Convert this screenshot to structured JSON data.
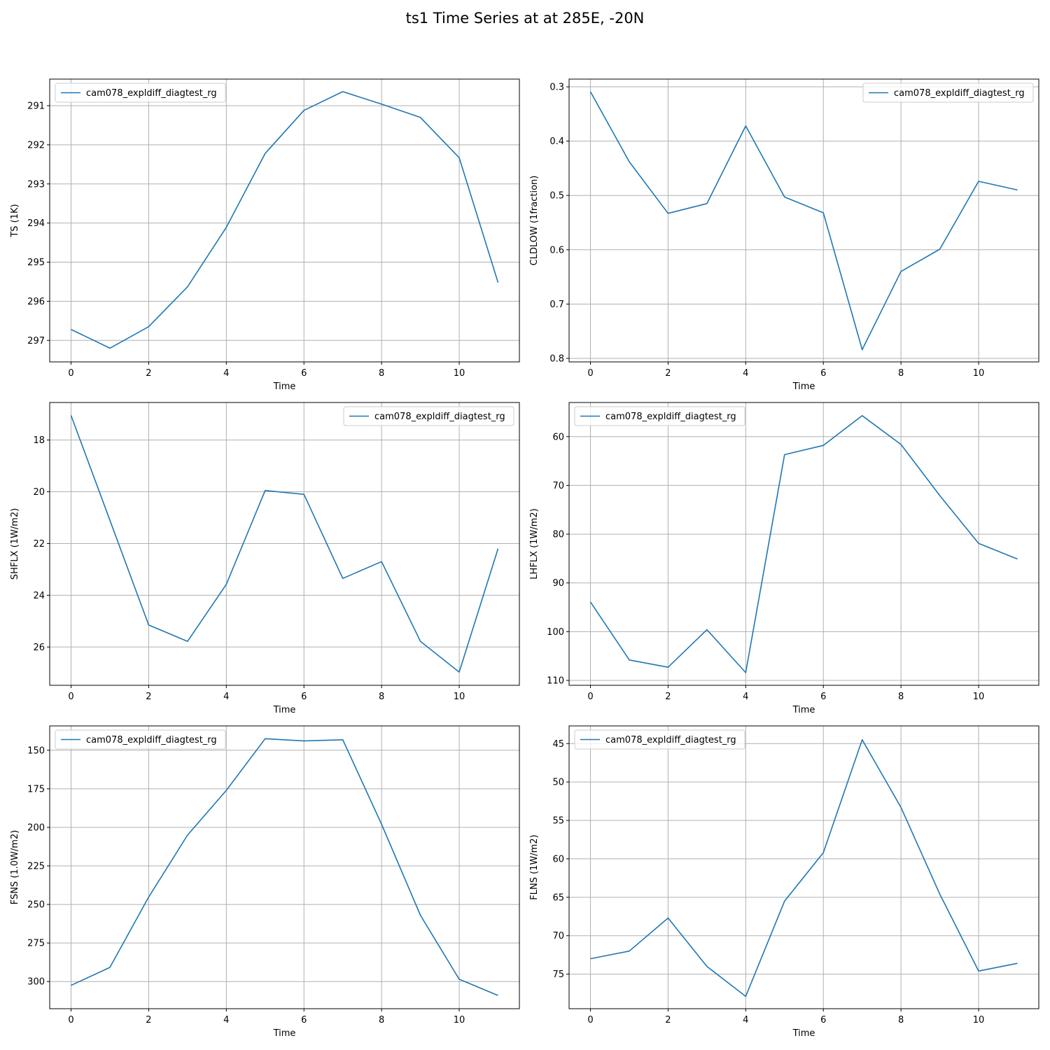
{
  "figure": {
    "title": "ts1 Time Series at at 285E, -20N",
    "line_color": "#1f77b4",
    "grid_color": "#b0b0b0"
  },
  "chart_data": [
    {
      "type": "line",
      "title": "",
      "xlabel": "Time",
      "ylabel": "TS (1K)",
      "inverted_y": true,
      "xlim": [
        -0.55,
        11.55
      ],
      "ylim": [
        290.32,
        297.55
      ],
      "xticks": [
        0,
        2,
        4,
        6,
        8,
        10
      ],
      "yticks": [
        291,
        292,
        293,
        294,
        295,
        296,
        297
      ],
      "grid": true,
      "legend_loc": "upper left",
      "series": [
        {
          "name": "cam078_expldiff_diagtest_rg",
          "x": [
            0,
            1,
            2,
            3,
            4,
            5,
            6,
            7,
            8,
            9,
            10,
            11
          ],
          "values": [
            296.72,
            297.2,
            296.65,
            295.63,
            294.11,
            292.22,
            291.12,
            290.64,
            290.96,
            291.3,
            292.33,
            295.52
          ]
        }
      ]
    },
    {
      "type": "line",
      "title": "",
      "xlabel": "Time",
      "ylabel": "CLDLOW (1fraction)",
      "inverted_y": true,
      "xlim": [
        -0.55,
        11.55
      ],
      "ylim": [
        0.2858,
        0.8065
      ],
      "xticks": [
        0,
        2,
        4,
        6,
        8,
        10
      ],
      "yticks": [
        0.3,
        0.4,
        0.5,
        0.6,
        0.7,
        0.8
      ],
      "grid": true,
      "legend_loc": "upper right",
      "series": [
        {
          "name": "cam078_expldiff_diagtest_rg",
          "x": [
            0,
            1,
            2,
            3,
            4,
            5,
            6,
            7,
            8,
            9,
            10,
            11
          ],
          "values": [
            0.309,
            0.438,
            0.533,
            0.515,
            0.372,
            0.503,
            0.532,
            0.784,
            0.64,
            0.599,
            0.474,
            0.49
          ]
        }
      ]
    },
    {
      "type": "line",
      "title": "",
      "xlabel": "Time",
      "ylabel": "SHFLX (1W/m2)",
      "inverted_y": true,
      "xlim": [
        -0.55,
        11.55
      ],
      "ylim": [
        16.55,
        27.48
      ],
      "xticks": [
        0,
        2,
        4,
        6,
        8,
        10
      ],
      "yticks": [
        18,
        20,
        22,
        24,
        26
      ],
      "grid": true,
      "legend_loc": "upper right",
      "series": [
        {
          "name": "cam078_expldiff_diagtest_rg",
          "x": [
            0,
            1,
            2,
            3,
            4,
            5,
            6,
            7,
            8,
            9,
            10,
            11
          ],
          "values": [
            17.05,
            21.1,
            25.15,
            25.78,
            23.58,
            19.95,
            20.1,
            23.35,
            22.7,
            25.78,
            26.97,
            22.2
          ]
        }
      ]
    },
    {
      "type": "line",
      "title": "",
      "xlabel": "Time",
      "ylabel": "LHFLX (1W/m2)",
      "inverted_y": true,
      "xlim": [
        -0.55,
        11.55
      ],
      "ylim": [
        53.0,
        111.0
      ],
      "xticks": [
        0,
        2,
        4,
        6,
        8,
        10
      ],
      "yticks": [
        60,
        70,
        80,
        90,
        100,
        110
      ],
      "grid": true,
      "legend_loc": "upper left",
      "series": [
        {
          "name": "cam078_expldiff_diagtest_rg",
          "x": [
            0,
            1,
            2,
            3,
            4,
            5,
            6,
            7,
            8,
            9,
            10,
            11
          ],
          "values": [
            93.9,
            105.8,
            107.3,
            99.6,
            108.4,
            63.7,
            61.8,
            55.7,
            61.6,
            72.1,
            81.9,
            85.1
          ]
        }
      ]
    },
    {
      "type": "line",
      "title": "",
      "xlabel": "Time",
      "ylabel": "FSNS (1.0W/m2)",
      "inverted_y": true,
      "xlim": [
        -0.55,
        11.55
      ],
      "ylim": [
        134.2,
        317.6
      ],
      "xticks": [
        0,
        2,
        4,
        6,
        8,
        10
      ],
      "yticks": [
        150,
        175,
        200,
        225,
        250,
        275,
        300
      ],
      "grid": true,
      "legend_loc": "upper left",
      "series": [
        {
          "name": "cam078_expldiff_diagtest_rg",
          "x": [
            0,
            1,
            2,
            3,
            4,
            5,
            6,
            7,
            8,
            9,
            10,
            11
          ],
          "values": [
            302.5,
            290.8,
            245.2,
            205.0,
            176.0,
            142.5,
            143.9,
            143.2,
            198.0,
            257.0,
            298.5,
            309.0
          ]
        }
      ]
    },
    {
      "type": "line",
      "title": "",
      "xlabel": "Time",
      "ylabel": "FLNS (1W/m2)",
      "inverted_y": true,
      "xlim": [
        -0.55,
        11.55
      ],
      "ylim": [
        42.7,
        79.5
      ],
      "xticks": [
        0,
        2,
        4,
        6,
        8,
        10
      ],
      "yticks": [
        45,
        50,
        55,
        60,
        65,
        70,
        75
      ],
      "grid": true,
      "legend_loc": "upper left",
      "series": [
        {
          "name": "cam078_expldiff_diagtest_rg",
          "x": [
            0,
            1,
            2,
            3,
            4,
            5,
            6,
            7,
            8,
            9,
            10,
            11
          ],
          "values": [
            73.0,
            72.0,
            67.7,
            74.0,
            77.9,
            65.5,
            59.2,
            44.5,
            53.3,
            64.6,
            74.6,
            73.6
          ]
        }
      ]
    }
  ]
}
